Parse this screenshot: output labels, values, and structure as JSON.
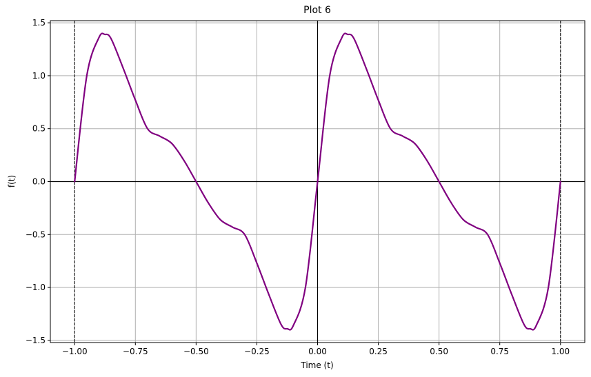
{
  "chart_data": {
    "type": "line",
    "title": "Plot 6",
    "xlabel": "Time (t)",
    "ylabel": "f(t)",
    "xlim": [
      -1.1,
      1.1
    ],
    "ylim": [
      -1.52,
      1.52
    ],
    "xticks": [
      -1.0,
      -0.75,
      -0.5,
      -0.25,
      0.0,
      0.25,
      0.5,
      0.75,
      1.0
    ],
    "xtick_labels": [
      "−1.00",
      "−0.75",
      "−0.50",
      "−0.25",
      "0.00",
      "0.25",
      "0.50",
      "0.75",
      "1.00"
    ],
    "yticks": [
      -1.5,
      -1.0,
      -0.5,
      0.0,
      0.5,
      1.0,
      1.5
    ],
    "ytick_labels": [
      "−1.5",
      "−1.0",
      "−0.5",
      "0.0",
      "0.5",
      "1.0",
      "1.5"
    ],
    "grid": true,
    "legend": "none",
    "reference_lines": {
      "horizontal_solid": [
        0
      ],
      "vertical_solid": [
        0
      ],
      "vertical_dashed": [
        -1,
        1
      ]
    },
    "series": [
      {
        "color": "#800080",
        "x": [
          -1.0,
          -0.95,
          -0.9,
          -0.875,
          -0.85,
          -0.8,
          -0.75,
          -0.7,
          -0.65,
          -0.6,
          -0.55,
          -0.5,
          -0.45,
          -0.4,
          -0.35,
          -0.3,
          -0.25,
          -0.2,
          -0.15,
          -0.125,
          -0.1,
          -0.05,
          0.0,
          0.05,
          0.1,
          0.125,
          0.15,
          0.2,
          0.25,
          0.3,
          0.35,
          0.4,
          0.45,
          0.5,
          0.55,
          0.6,
          0.65,
          0.7,
          0.75,
          0.8,
          0.85,
          0.875,
          0.9,
          0.95,
          1.0
        ],
        "y": [
          0.0,
          1.0,
          1.36,
          1.39,
          1.35,
          1.07,
          0.77,
          0.5,
          0.43,
          0.36,
          0.2,
          0.0,
          -0.2,
          -0.36,
          -0.43,
          -0.5,
          -0.77,
          -1.07,
          -1.35,
          -1.39,
          -1.36,
          -1.0,
          0.0,
          1.0,
          1.36,
          1.39,
          1.35,
          1.07,
          0.77,
          0.5,
          0.43,
          0.36,
          0.2,
          0.0,
          -0.2,
          -0.36,
          -0.43,
          -0.5,
          -0.77,
          -1.07,
          -1.35,
          -1.39,
          -1.36,
          -1.0,
          0.0
        ]
      }
    ]
  },
  "colors": {
    "grid": "#b0b0b0",
    "axes": "#000000",
    "reference": "#000000"
  }
}
